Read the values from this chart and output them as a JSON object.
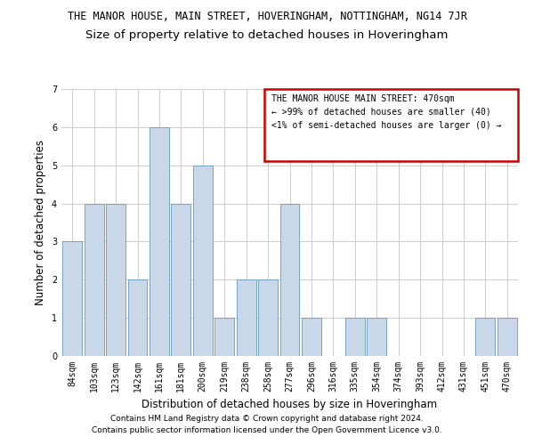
{
  "title": "THE MANOR HOUSE, MAIN STREET, HOVERINGHAM, NOTTINGHAM, NG14 7JR",
  "subtitle": "Size of property relative to detached houses in Hoveringham",
  "xlabel": "Distribution of detached houses by size in Hoveringham",
  "ylabel": "Number of detached properties",
  "categories": [
    "84sqm",
    "103sqm",
    "123sqm",
    "142sqm",
    "161sqm",
    "181sqm",
    "200sqm",
    "219sqm",
    "238sqm",
    "258sqm",
    "277sqm",
    "296sqm",
    "316sqm",
    "335sqm",
    "354sqm",
    "374sqm",
    "393sqm",
    "412sqm",
    "431sqm",
    "451sqm",
    "470sqm"
  ],
  "values": [
    3,
    4,
    4,
    2,
    6,
    4,
    5,
    1,
    2,
    2,
    4,
    1,
    0,
    1,
    1,
    0,
    0,
    0,
    0,
    1,
    1
  ],
  "bar_color": "#c8d8e8",
  "bar_edge_color": "#6699bb",
  "ylim": [
    0,
    7
  ],
  "yticks": [
    0,
    1,
    2,
    3,
    4,
    5,
    6,
    7
  ],
  "grid_color": "#cccccc",
  "legend_title": "THE MANOR HOUSE MAIN STREET: 470sqm",
  "legend_line1": "← >99% of detached houses are smaller (40)",
  "legend_line2": "<1% of semi-detached houses are larger (0) →",
  "legend_box_edge_color": "#cc0000",
  "footer_line1": "Contains HM Land Registry data © Crown copyright and database right 2024.",
  "footer_line2": "Contains public sector information licensed under the Open Government Licence v3.0.",
  "title_fontsize": 8.5,
  "subtitle_fontsize": 9.5,
  "axis_label_fontsize": 8.5,
  "tick_fontsize": 7,
  "legend_fontsize": 7,
  "footer_fontsize": 6.5
}
